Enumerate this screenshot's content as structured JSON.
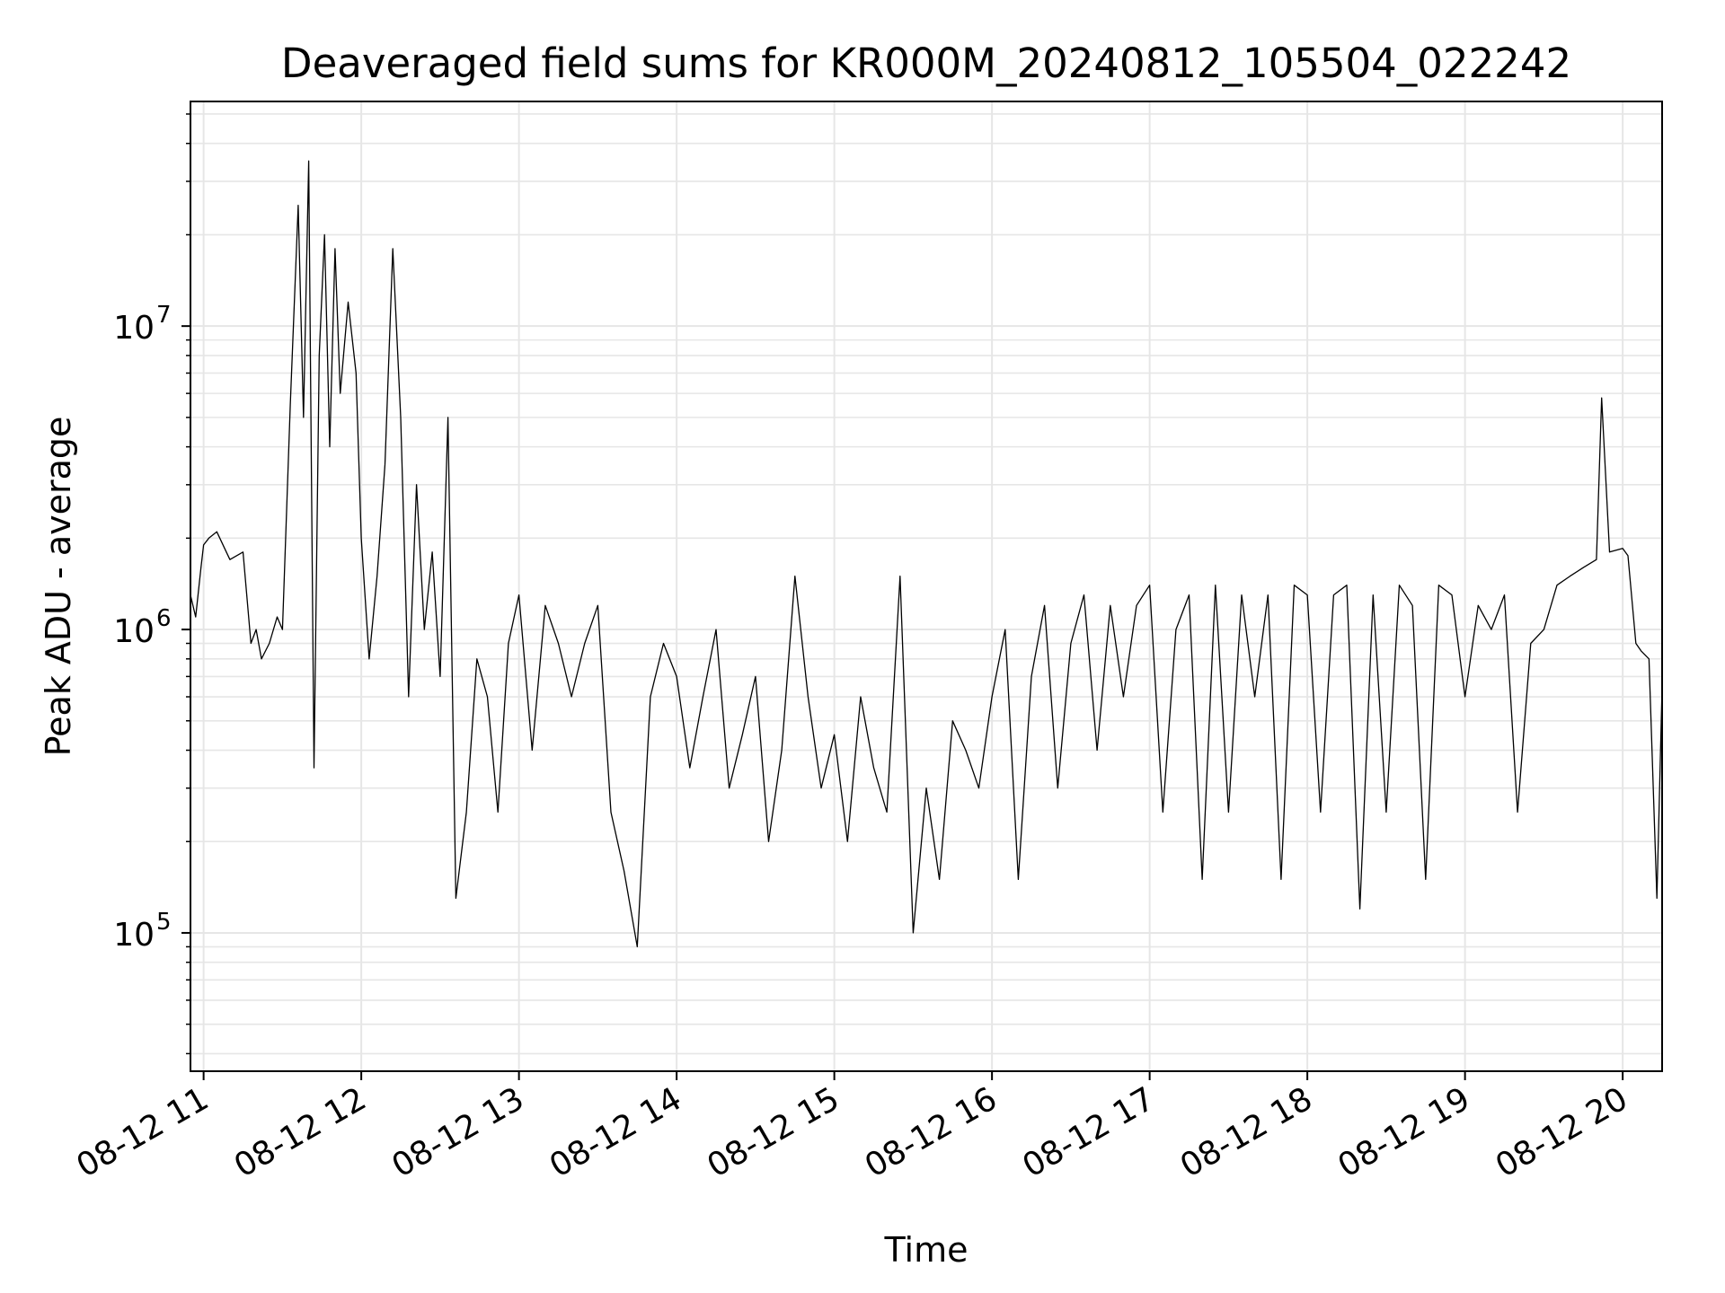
{
  "chart_data": {
    "type": "line",
    "title": "Deaveraged field sums for KR000M_20240812_105504_022242",
    "xlabel": "Time",
    "ylabel": "Peak ADU - average",
    "yscale": "log",
    "xlim": [
      "2024-08-12 10:55",
      "2024-08-12 20:15"
    ],
    "ylim": [
      35000,
      55000000
    ],
    "grid": true,
    "colors": {
      "line": "#000000",
      "grid": "#e6e6e6",
      "axes": "#000000"
    },
    "x_ticks": [
      {
        "time": "2024-08-12 11:00",
        "label": "08-12 11"
      },
      {
        "time": "2024-08-12 12:00",
        "label": "08-12 12"
      },
      {
        "time": "2024-08-12 13:00",
        "label": "08-12 13"
      },
      {
        "time": "2024-08-12 14:00",
        "label": "08-12 14"
      },
      {
        "time": "2024-08-12 15:00",
        "label": "08-12 15"
      },
      {
        "time": "2024-08-12 16:00",
        "label": "08-12 16"
      },
      {
        "time": "2024-08-12 17:00",
        "label": "08-12 17"
      },
      {
        "time": "2024-08-12 18:00",
        "label": "08-12 18"
      },
      {
        "time": "2024-08-12 19:00",
        "label": "08-12 19"
      },
      {
        "time": "2024-08-12 20:00",
        "label": "08-12 20"
      }
    ],
    "y_ticks": [
      {
        "value": 100000,
        "base": "10",
        "exp": "5"
      },
      {
        "value": 1000000,
        "base": "10",
        "exp": "6"
      },
      {
        "value": 10000000,
        "base": "10",
        "exp": "7"
      }
    ],
    "series": [
      {
        "x": [
          "2024-08-12 10:55",
          "2024-08-12 10:57",
          "2024-08-12 10:59",
          "2024-08-12 11:00",
          "2024-08-12 11:02",
          "2024-08-12 11:05",
          "2024-08-12 11:10",
          "2024-08-12 11:15",
          "2024-08-12 11:18",
          "2024-08-12 11:20",
          "2024-08-12 11:22",
          "2024-08-12 11:25",
          "2024-08-12 11:28",
          "2024-08-12 11:30",
          "2024-08-12 11:33",
          "2024-08-12 11:36",
          "2024-08-12 11:38",
          "2024-08-12 11:40",
          "2024-08-12 11:42",
          "2024-08-12 11:44",
          "2024-08-12 11:46",
          "2024-08-12 11:48",
          "2024-08-12 11:50",
          "2024-08-12 11:52",
          "2024-08-12 11:55",
          "2024-08-12 11:58",
          "2024-08-12 12:00",
          "2024-08-12 12:03",
          "2024-08-12 12:06",
          "2024-08-12 12:09",
          "2024-08-12 12:12",
          "2024-08-12 12:15",
          "2024-08-12 12:18",
          "2024-08-12 12:21",
          "2024-08-12 12:24",
          "2024-08-12 12:27",
          "2024-08-12 12:30",
          "2024-08-12 12:33",
          "2024-08-12 12:36",
          "2024-08-12 12:40",
          "2024-08-12 12:44",
          "2024-08-12 12:48",
          "2024-08-12 12:52",
          "2024-08-12 12:56",
          "2024-08-12 13:00",
          "2024-08-12 13:05",
          "2024-08-12 13:10",
          "2024-08-12 13:15",
          "2024-08-12 13:20",
          "2024-08-12 13:25",
          "2024-08-12 13:30",
          "2024-08-12 13:35",
          "2024-08-12 13:40",
          "2024-08-12 13:45",
          "2024-08-12 13:50",
          "2024-08-12 13:55",
          "2024-08-12 14:00",
          "2024-08-12 14:05",
          "2024-08-12 14:10",
          "2024-08-12 14:15",
          "2024-08-12 14:20",
          "2024-08-12 14:25",
          "2024-08-12 14:30",
          "2024-08-12 14:35",
          "2024-08-12 14:40",
          "2024-08-12 14:45",
          "2024-08-12 14:50",
          "2024-08-12 14:55",
          "2024-08-12 15:00",
          "2024-08-12 15:05",
          "2024-08-12 15:10",
          "2024-08-12 15:15",
          "2024-08-12 15:20",
          "2024-08-12 15:25",
          "2024-08-12 15:30",
          "2024-08-12 15:35",
          "2024-08-12 15:40",
          "2024-08-12 15:45",
          "2024-08-12 15:50",
          "2024-08-12 15:55",
          "2024-08-12 16:00",
          "2024-08-12 16:05",
          "2024-08-12 16:10",
          "2024-08-12 16:15",
          "2024-08-12 16:20",
          "2024-08-12 16:25",
          "2024-08-12 16:30",
          "2024-08-12 16:35",
          "2024-08-12 16:40",
          "2024-08-12 16:45",
          "2024-08-12 16:50",
          "2024-08-12 16:55",
          "2024-08-12 17:00",
          "2024-08-12 17:05",
          "2024-08-12 17:10",
          "2024-08-12 17:15",
          "2024-08-12 17:20",
          "2024-08-12 17:25",
          "2024-08-12 17:30",
          "2024-08-12 17:35",
          "2024-08-12 17:40",
          "2024-08-12 17:45",
          "2024-08-12 17:50",
          "2024-08-12 17:55",
          "2024-08-12 18:00",
          "2024-08-12 18:05",
          "2024-08-12 18:10",
          "2024-08-12 18:15",
          "2024-08-12 18:20",
          "2024-08-12 18:25",
          "2024-08-12 18:30",
          "2024-08-12 18:35",
          "2024-08-12 18:40",
          "2024-08-12 18:45",
          "2024-08-12 18:50",
          "2024-08-12 18:55",
          "2024-08-12 19:00",
          "2024-08-12 19:05",
          "2024-08-12 19:10",
          "2024-08-12 19:15",
          "2024-08-12 19:20",
          "2024-08-12 19:25",
          "2024-08-12 19:30",
          "2024-08-12 19:35",
          "2024-08-12 19:40",
          "2024-08-12 19:45",
          "2024-08-12 19:50",
          "2024-08-12 19:52",
          "2024-08-12 19:55",
          "2024-08-12 20:00",
          "2024-08-12 20:02",
          "2024-08-12 20:05",
          "2024-08-12 20:07",
          "2024-08-12 20:10",
          "2024-08-12 20:13",
          "2024-08-12 20:15"
        ],
        "y": [
          1300000,
          1100000,
          1600000,
          1900000,
          2000000,
          2100000,
          1700000,
          1800000,
          900000,
          1000000,
          800000,
          900000,
          1100000,
          1000000,
          5500000,
          25000000,
          5000000,
          35000000,
          350000,
          8000000,
          20000000,
          4000000,
          18000000,
          6000000,
          12000000,
          7000000,
          2000000,
          800000,
          1500000,
          3500000,
          18000000,
          5000000,
          600000,
          3000000,
          1000000,
          1800000,
          700000,
          5000000,
          130000,
          250000,
          800000,
          600000,
          250000,
          900000,
          1300000,
          400000,
          1200000,
          900000,
          600000,
          900000,
          1200000,
          250000,
          160000,
          90000,
          600000,
          900000,
          700000,
          350000,
          600000,
          1000000,
          300000,
          450000,
          700000,
          200000,
          400000,
          1500000,
          600000,
          300000,
          450000,
          200000,
          600000,
          350000,
          250000,
          1500000,
          100000,
          300000,
          150000,
          500000,
          400000,
          300000,
          600000,
          1000000,
          150000,
          700000,
          1200000,
          300000,
          900000,
          1300000,
          400000,
          1200000,
          600000,
          1200000,
          1400000,
          250000,
          1000000,
          1300000,
          150000,
          1400000,
          250000,
          1300000,
          600000,
          1300000,
          150000,
          1400000,
          1300000,
          250000,
          1300000,
          1400000,
          120000,
          1300000,
          250000,
          1400000,
          1200000,
          150000,
          1400000,
          1300000,
          600000,
          1200000,
          1000000,
          1300000,
          250000,
          900000,
          1000000,
          1400000,
          1500000,
          1600000,
          1700000,
          5800000,
          1800000,
          1850000,
          1750000,
          900000,
          850000,
          800000,
          130000,
          650000
        ]
      }
    ]
  }
}
